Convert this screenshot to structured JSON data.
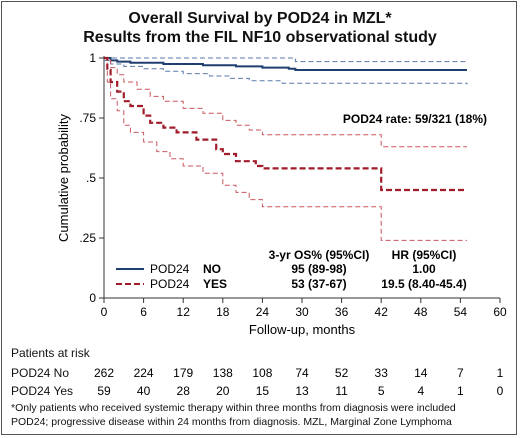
{
  "title_line1": "Overall Survival by POD24 in MZL*",
  "title_line2": "Results from the FIL NF10 observational study",
  "chart_data": {
    "type": "line",
    "subtype": "kaplan-meier",
    "xlabel": "Follow-up, months",
    "ylabel": "Cumulative probability",
    "xlim": [
      0,
      60
    ],
    "ylim": [
      0,
      1
    ],
    "xticks": [
      0,
      6,
      12,
      18,
      24,
      30,
      36,
      42,
      48,
      54,
      60
    ],
    "yticks": [
      {
        "value": 0,
        "label": "0"
      },
      {
        "value": 0.25,
        "label": ".25"
      },
      {
        "value": 0.5,
        "label": ".5"
      },
      {
        "value": 0.75,
        "label": ".75"
      },
      {
        "value": 1,
        "label": "1"
      }
    ],
    "annotation": "POD24 rate: 59/321 (18%)",
    "table_headers": {
      "os": "3-yr OS% (95%CI)",
      "hr": "HR (95%CI)"
    },
    "series": [
      {
        "name": "POD24",
        "group": "NO",
        "os": "95 (89-98)",
        "hr": "1.00",
        "color": "#1f3f6e",
        "style": "solid",
        "curve": [
          [
            0,
            1
          ],
          [
            1,
            0.99
          ],
          [
            2,
            0.985
          ],
          [
            4,
            0.98
          ],
          [
            9,
            0.975
          ],
          [
            15,
            0.97
          ],
          [
            20,
            0.965
          ],
          [
            24,
            0.96
          ],
          [
            28,
            0.955
          ],
          [
            29,
            0.95
          ],
          [
            55,
            0.95
          ]
        ],
        "ci_lower": [
          [
            0,
            0.99
          ],
          [
            1,
            0.975
          ],
          [
            3,
            0.965
          ],
          [
            6,
            0.955
          ],
          [
            9,
            0.945
          ],
          [
            12,
            0.935
          ],
          [
            16,
            0.925
          ],
          [
            19,
            0.915
          ],
          [
            22,
            0.905
          ],
          [
            27,
            0.895
          ],
          [
            55,
            0.89
          ]
        ],
        "ci_upper": [
          [
            0,
            1
          ],
          [
            28,
            1
          ],
          [
            29,
            0.985
          ],
          [
            55,
            0.985
          ]
        ]
      },
      {
        "name": "POD24",
        "group": "YES",
        "os": "53 (37-67)",
        "hr": "19.5 (8.40-45.4)",
        "color": "#a01c2a",
        "style": "dashed",
        "curve": [
          [
            0,
            1
          ],
          [
            0.5,
            0.95
          ],
          [
            1,
            0.9
          ],
          [
            2,
            0.86
          ],
          [
            3,
            0.82
          ],
          [
            4,
            0.8
          ],
          [
            6,
            0.76
          ],
          [
            7,
            0.73
          ],
          [
            9,
            0.71
          ],
          [
            11,
            0.69
          ],
          [
            14,
            0.66
          ],
          [
            17,
            0.62
          ],
          [
            18,
            0.6
          ],
          [
            20,
            0.57
          ],
          [
            23,
            0.55
          ],
          [
            24,
            0.54
          ],
          [
            42,
            0.54
          ],
          [
            42,
            0.45
          ],
          [
            55,
            0.45
          ]
        ],
        "ci_lower": [
          [
            0,
            1
          ],
          [
            0.5,
            0.9
          ],
          [
            1,
            0.83
          ],
          [
            2,
            0.78
          ],
          [
            3,
            0.72
          ],
          [
            4,
            0.69
          ],
          [
            6,
            0.65
          ],
          [
            8,
            0.61
          ],
          [
            10,
            0.58
          ],
          [
            12,
            0.55
          ],
          [
            15,
            0.52
          ],
          [
            18,
            0.47
          ],
          [
            20,
            0.44
          ],
          [
            22,
            0.41
          ],
          [
            24,
            0.38
          ],
          [
            42,
            0.38
          ],
          [
            42,
            0.24
          ],
          [
            55,
            0.24
          ]
        ],
        "ci_upper": [
          [
            0,
            1
          ],
          [
            1,
            0.96
          ],
          [
            2,
            0.93
          ],
          [
            3,
            0.9
          ],
          [
            5,
            0.87
          ],
          [
            7,
            0.84
          ],
          [
            9,
            0.82
          ],
          [
            12,
            0.79
          ],
          [
            15,
            0.77
          ],
          [
            18,
            0.74
          ],
          [
            20,
            0.72
          ],
          [
            22,
            0.7
          ],
          [
            24,
            0.68
          ],
          [
            42,
            0.68
          ],
          [
            42,
            0.63
          ],
          [
            55,
            0.63
          ]
        ]
      }
    ]
  },
  "risk_table": {
    "title": "Patients at risk",
    "timepoints": [
      0,
      6,
      12,
      18,
      24,
      30,
      36,
      42,
      48,
      54,
      60
    ],
    "rows": [
      {
        "label": "POD24 No",
        "values": [
          262,
          224,
          179,
          138,
          108,
          74,
          52,
          33,
          14,
          7,
          1
        ]
      },
      {
        "label": "POD24 Yes",
        "values": [
          59,
          40,
          28,
          20,
          15,
          13,
          11,
          5,
          4,
          1,
          0
        ]
      }
    ]
  },
  "footnote_line1": "*Only patients who received systemic therapy within three months from diagnosis were included",
  "footnote_line2": "POD24; progressive disease within 24 months from diagnosis. MZL, Marginal Zone Lymphoma"
}
